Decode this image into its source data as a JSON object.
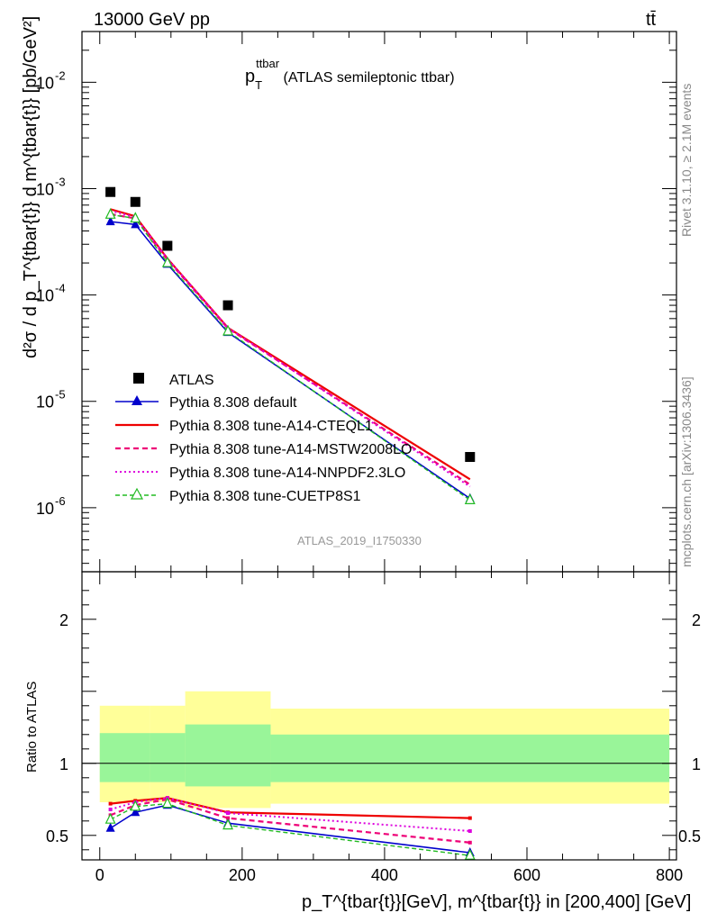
{
  "header": {
    "energy_label": "13000 GeV pp",
    "process_label": "tt̄"
  },
  "side": {
    "rivet": "Rivet 3.1.10, ≥ 2.1M events",
    "mcplots": "mcplots.cern.ch [arXiv:1306.3436]"
  },
  "top_panel": {
    "title_main": "p",
    "title_sub": "T",
    "title_sup": "ttbar",
    "title_rest": " (ATLAS semileptonic ttbar)",
    "analysis_tag": "ATLAS_2019_I1750330",
    "ylabel": "d²σ / d p_T^{tbar{t}} d m^{tbar{t}} [pb/GeV²]"
  },
  "bottom_panel": {
    "ylabel": "Ratio to ATLAS"
  },
  "xaxis_label": "p_T^{tbar{t}}[GeV], m^{tbar{t}} in [200,400] [GeV]",
  "legend": {
    "atlas": "ATLAS",
    "default": "Pythia 8.308 default",
    "cteql1": "Pythia 8.308 tune-A14-CTEQL1",
    "mstw": "Pythia 8.308 tune-A14-MSTW2008LO",
    "nnpdf": "Pythia 8.308 tune-A14-NNPDF2.3LO",
    "cuetp": "Pythia 8.308 tune-CUETP8S1"
  },
  "chart_data": [
    {
      "type": "scatter",
      "panel": "main",
      "yscale": "log",
      "xlim": [
        -25,
        810
      ],
      "ylim": [
        2.5e-07,
        0.03
      ],
      "x_ticks": [
        0,
        200,
        400,
        600,
        800
      ],
      "y_ticks": [
        "10^-6",
        "10^-5",
        "10^-4",
        "10^-3",
        "10^-2"
      ],
      "x": [
        15,
        50,
        95,
        180,
        520
      ],
      "series": [
        {
          "name": "ATLAS",
          "color": "#000000",
          "marker": "square",
          "values": [
            0.00093,
            0.00075,
            0.00029,
            8e-05,
            3e-06
          ]
        },
        {
          "name": "Pythia 8.308 default",
          "color": "#0000cc",
          "marker": "triangle",
          "values": [
            0.00049,
            0.00046,
            0.000195,
            4.45e-05,
            1.22e-06
          ]
        },
        {
          "name": "Pythia 8.308 tune-A14-CTEQL1",
          "color": "#ee0000",
          "dash": "solid",
          "values": [
            0.00064,
            0.00055,
            0.00022,
            4.92e-05,
            1.85e-06
          ]
        },
        {
          "name": "Pythia 8.308 tune-A14-MSTW2008LO",
          "color": "#ee0077",
          "dash": "dashed",
          "values": [
            0.000575,
            0.000525,
            0.000215,
            4.85e-05,
            1.65e-06
          ]
        },
        {
          "name": "Pythia 8.308 tune-A14-NNPDF2.3LO",
          "color": "#dd00dd",
          "dash": "dotted",
          "values": [
            0.00062,
            0.00054,
            0.00022,
            4.9e-05,
            1.58e-06
          ]
        },
        {
          "name": "Pythia 8.308 tune-CUETP8S1",
          "color": "#22bb22",
          "dash": "dashed",
          "marker": "open-triangle",
          "values": [
            0.00057,
            0.000525,
            0.0002,
            4.55e-05,
            1.18e-06
          ]
        }
      ]
    },
    {
      "type": "line",
      "panel": "ratio",
      "xlim": [
        -25,
        810
      ],
      "ylim": [
        0.33,
        2.33
      ],
      "x_ticks": [
        0,
        200,
        400,
        600,
        800
      ],
      "y_ticks": [
        0.5,
        1,
        2
      ],
      "x": [
        15,
        50,
        95,
        180,
        520
      ],
      "bands": {
        "edges": [
          0,
          70,
          120,
          240,
          800
        ],
        "stat_lo": [
          0.87,
          0.87,
          0.84,
          0.87,
          0.88
        ],
        "stat_hi": [
          1.21,
          1.21,
          1.27,
          1.2,
          1.21
        ],
        "total_lo": [
          0.73,
          0.73,
          0.69,
          0.72,
          0.73
        ],
        "total_hi": [
          1.4,
          1.4,
          1.5,
          1.38,
          1.41
        ]
      },
      "series": [
        {
          "name": "Pythia 8.308 default",
          "color": "#0000cc",
          "values": [
            0.55,
            0.66,
            0.71,
            0.585,
            0.38
          ]
        },
        {
          "name": "Pythia 8.308 tune-A14-CTEQL1",
          "color": "#ee0000",
          "values": [
            0.72,
            0.74,
            0.76,
            0.66,
            0.62
          ]
        },
        {
          "name": "Pythia 8.308 tune-A14-MSTW2008LO",
          "color": "#ee0077",
          "values": [
            0.64,
            0.71,
            0.75,
            0.62,
            0.45
          ]
        },
        {
          "name": "Pythia 8.308 tune-A14-NNPDF2.3LO",
          "color": "#dd00dd",
          "values": [
            0.68,
            0.73,
            0.76,
            0.655,
            0.53
          ]
        },
        {
          "name": "Pythia 8.308 tune-CUETP8S1",
          "color": "#22bb22",
          "values": [
            0.61,
            0.7,
            0.72,
            0.57,
            0.36
          ]
        }
      ]
    }
  ]
}
